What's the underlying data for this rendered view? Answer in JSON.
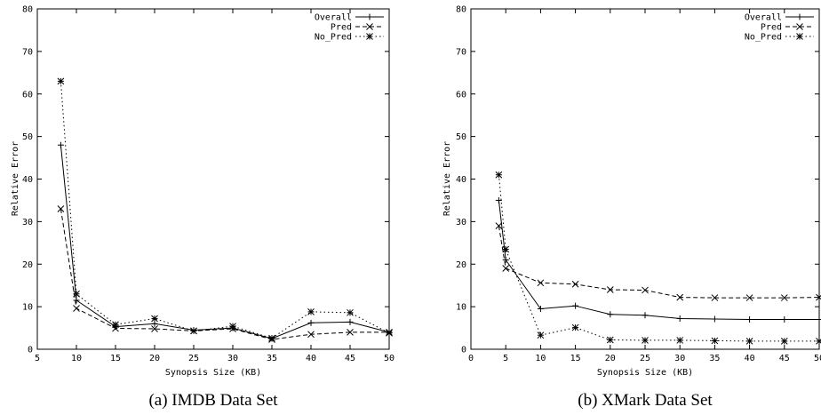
{
  "chart_data": [
    {
      "type": "line",
      "caption": "(a) IMDB Data Set",
      "xlabel": "Synopsis Size (KB)",
      "ylabel": "Relative Error",
      "xlim": [
        5,
        50
      ],
      "ylim": [
        0,
        80
      ],
      "xticks": [
        5,
        10,
        15,
        20,
        25,
        30,
        35,
        40,
        45,
        50
      ],
      "yticks": [
        0,
        10,
        20,
        30,
        40,
        50,
        60,
        70,
        80
      ],
      "grid": false,
      "legend_position": "top-right",
      "series": [
        {
          "name": "Overall",
          "marker": "plus",
          "dash": "solid",
          "x": [
            8,
            10,
            15,
            20,
            25,
            30,
            35,
            40,
            45,
            50
          ],
          "y": [
            48,
            11.5,
            5.3,
            6,
            4.5,
            5,
            2.5,
            6.2,
            6.4,
            4
          ]
        },
        {
          "name": "Pred",
          "marker": "cross",
          "dash": "dashed",
          "x": [
            8,
            10,
            15,
            20,
            25,
            30,
            35,
            40,
            45,
            50
          ],
          "y": [
            33,
            9.6,
            4.9,
            4.8,
            4.3,
            4.8,
            2.3,
            3.5,
            4,
            4
          ]
        },
        {
          "name": "No_Pred",
          "marker": "star",
          "dash": "dotted",
          "x": [
            8,
            10,
            15,
            20,
            25,
            30,
            35,
            40,
            45,
            50
          ],
          "y": [
            63,
            13,
            5.8,
            7.2,
            4.3,
            5.4,
            2.6,
            8.8,
            8.6,
            3.8
          ]
        }
      ]
    },
    {
      "type": "line",
      "caption": "(b) XMark Data Set",
      "xlabel": "Synopsis Size (KB)",
      "ylabel": "Relative Error",
      "xlim": [
        0,
        50
      ],
      "ylim": [
        0,
        80
      ],
      "xticks": [
        0,
        5,
        10,
        15,
        20,
        25,
        30,
        35,
        40,
        45,
        50
      ],
      "yticks": [
        0,
        10,
        20,
        30,
        40,
        50,
        60,
        70,
        80
      ],
      "grid": false,
      "legend_position": "top-right",
      "series": [
        {
          "name": "Overall",
          "marker": "plus",
          "dash": "solid",
          "x": [
            4,
            5,
            10,
            15,
            20,
            25,
            30,
            35,
            40,
            45,
            50
          ],
          "y": [
            35,
            21,
            9.5,
            10.2,
            8.2,
            8,
            7.2,
            7.1,
            7,
            7,
            7
          ]
        },
        {
          "name": "Pred",
          "marker": "cross",
          "dash": "dashed",
          "x": [
            4,
            5,
            10,
            15,
            20,
            25,
            30,
            35,
            40,
            45,
            50
          ],
          "y": [
            29,
            19,
            15.6,
            15.3,
            14,
            13.9,
            12.2,
            12.1,
            12.1,
            12.1,
            12.2
          ]
        },
        {
          "name": "No_Pred",
          "marker": "star",
          "dash": "dotted",
          "x": [
            4,
            5,
            10,
            15,
            20,
            25,
            30,
            35,
            40,
            45,
            50
          ],
          "y": [
            41,
            23.5,
            3.3,
            5.1,
            2.2,
            2.1,
            2.1,
            2,
            1.9,
            1.9,
            1.9
          ]
        }
      ]
    }
  ]
}
